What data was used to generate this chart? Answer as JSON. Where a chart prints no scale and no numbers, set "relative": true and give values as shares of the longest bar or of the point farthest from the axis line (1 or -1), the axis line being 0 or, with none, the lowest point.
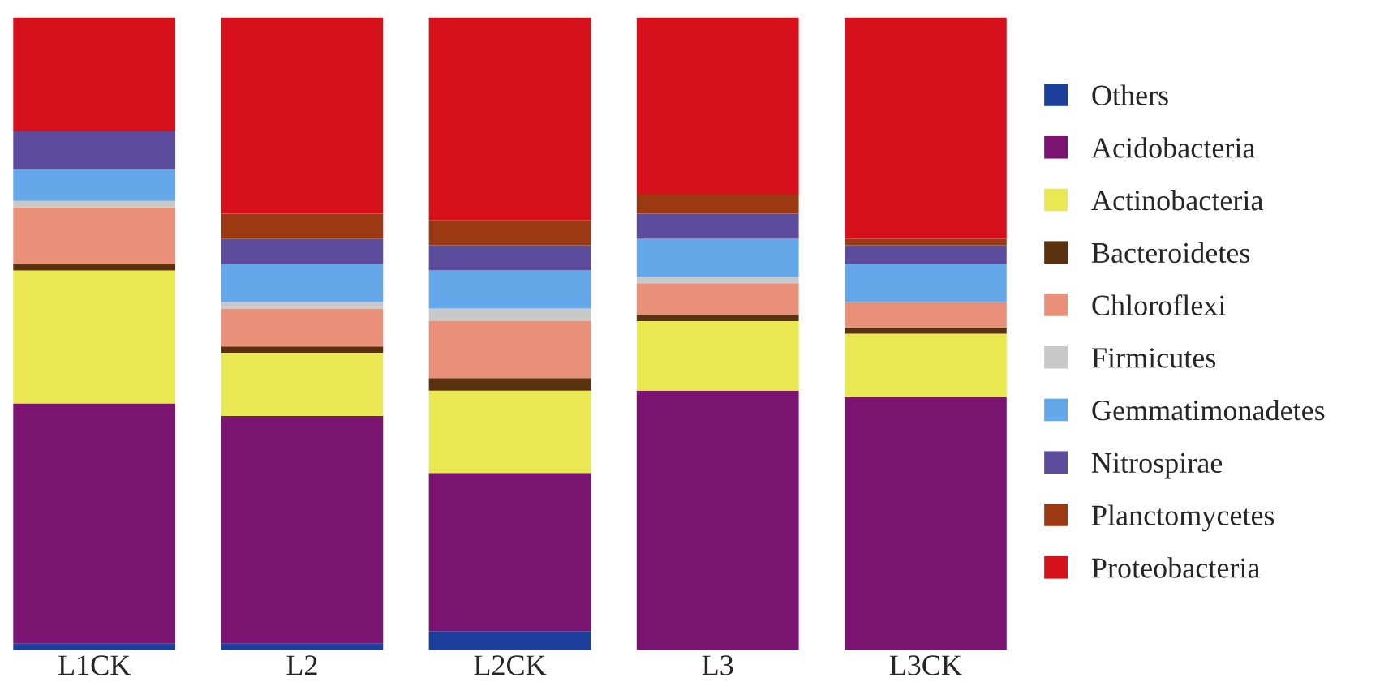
{
  "chart_data": {
    "type": "bar",
    "stacked": true,
    "relative": true,
    "legend": "right",
    "categories": [
      "L1CK",
      "L2",
      "L2CK",
      "L3",
      "L3CK"
    ],
    "series": [
      {
        "name": "Others",
        "color": "#1b3f9a",
        "values": [
          0.01,
          0.01,
          0.03,
          0,
          0
        ]
      },
      {
        "name": "Acidobacteria",
        "color": "#7b1470",
        "values": [
          0.38,
          0.36,
          0.25,
          0.41,
          0.4
        ]
      },
      {
        "name": "Actinobacteria",
        "color": "#e9e752",
        "values": [
          0.21,
          0.1,
          0.13,
          0.11,
          0.1
        ]
      },
      {
        "name": "Bacteroidetes",
        "color": "#5a3210",
        "values": [
          0.01,
          0.01,
          0.02,
          0.01,
          0.01
        ]
      },
      {
        "name": "Chloroflexi",
        "color": "#e99078",
        "values": [
          0.09,
          0.06,
          0.09,
          0.05,
          0.04
        ]
      },
      {
        "name": "Firmicutes",
        "color": "#c8c8c8",
        "values": [
          0.01,
          0.01,
          0.02,
          0.01,
          0
        ]
      },
      {
        "name": "Gemmatimonadetes",
        "color": "#64a8ea",
        "values": [
          0.05,
          0.06,
          0.06,
          0.06,
          0.06
        ]
      },
      {
        "name": "Nitrospirae",
        "color": "#5d4c9c",
        "values": [
          0.06,
          0.04,
          0.04,
          0.04,
          0.03
        ]
      },
      {
        "name": "Planctomycetes",
        "color": "#9b3a12",
        "values": [
          0,
          0.04,
          0.04,
          0.03,
          0.01
        ]
      },
      {
        "name": "Proteobacteria",
        "color": "#d7111b",
        "values": [
          0.18,
          0.31,
          0.32,
          0.28,
          0.35
        ]
      }
    ]
  }
}
